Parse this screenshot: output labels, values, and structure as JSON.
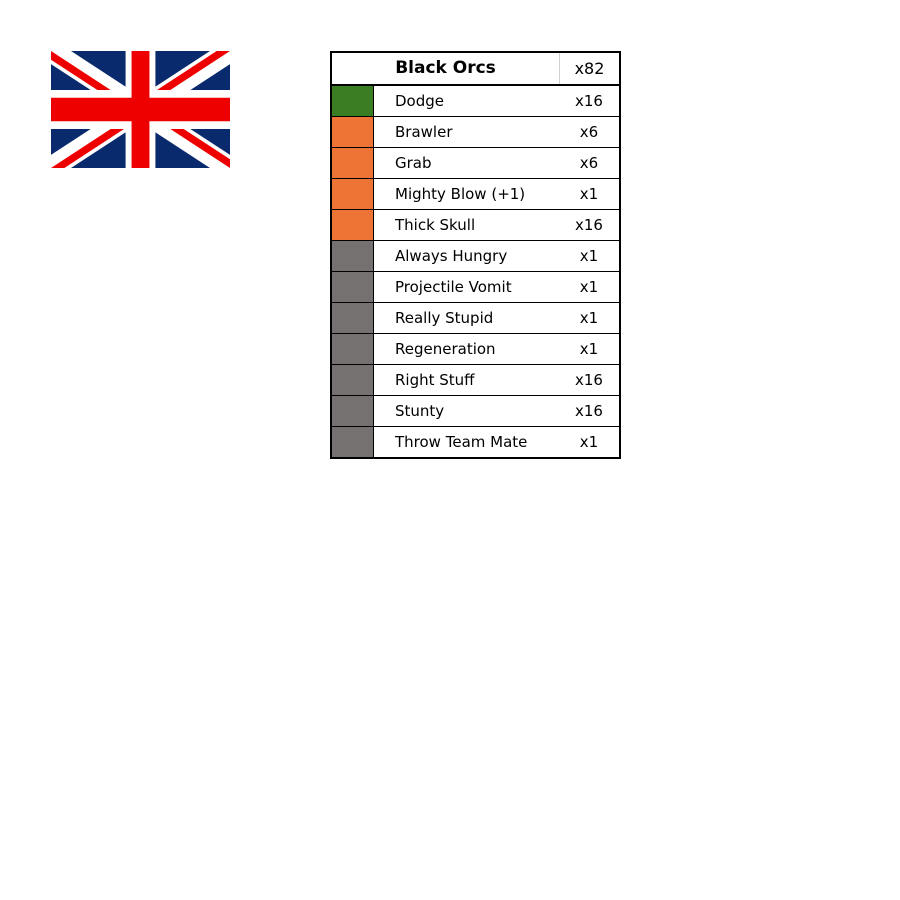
{
  "flag": {
    "icon": "union-jack-flag-icon",
    "colors": {
      "blue": "#0a2a6e",
      "red": "#ee0000",
      "white": "#ffffff"
    }
  },
  "table": {
    "title": "Black Orcs",
    "total": "x82",
    "colors": {
      "green": "#3a7d22",
      "orange": "#ed7434",
      "gray": "#767171"
    },
    "rows": [
      {
        "name": "Dodge",
        "count": "x16",
        "color": "#3a7d22"
      },
      {
        "name": "Brawler",
        "count": "x6",
        "color": "#ed7434"
      },
      {
        "name": "Grab",
        "count": "x6",
        "color": "#ed7434"
      },
      {
        "name": "Mighty Blow (+1)",
        "count": "x1",
        "color": "#ed7434"
      },
      {
        "name": "Thick Skull",
        "count": "x16",
        "color": "#ed7434"
      },
      {
        "name": "Always Hungry",
        "count": "x1",
        "color": "#767171"
      },
      {
        "name": "Projectile Vomit",
        "count": "x1",
        "color": "#767171"
      },
      {
        "name": "Really Stupid",
        "count": "x1",
        "color": "#767171"
      },
      {
        "name": "Regeneration",
        "count": "x1",
        "color": "#767171"
      },
      {
        "name": "Right Stuff",
        "count": "x16",
        "color": "#767171"
      },
      {
        "name": "Stunty",
        "count": "x16",
        "color": "#767171"
      },
      {
        "name": "Throw Team Mate",
        "count": "x1",
        "color": "#767171"
      }
    ]
  }
}
